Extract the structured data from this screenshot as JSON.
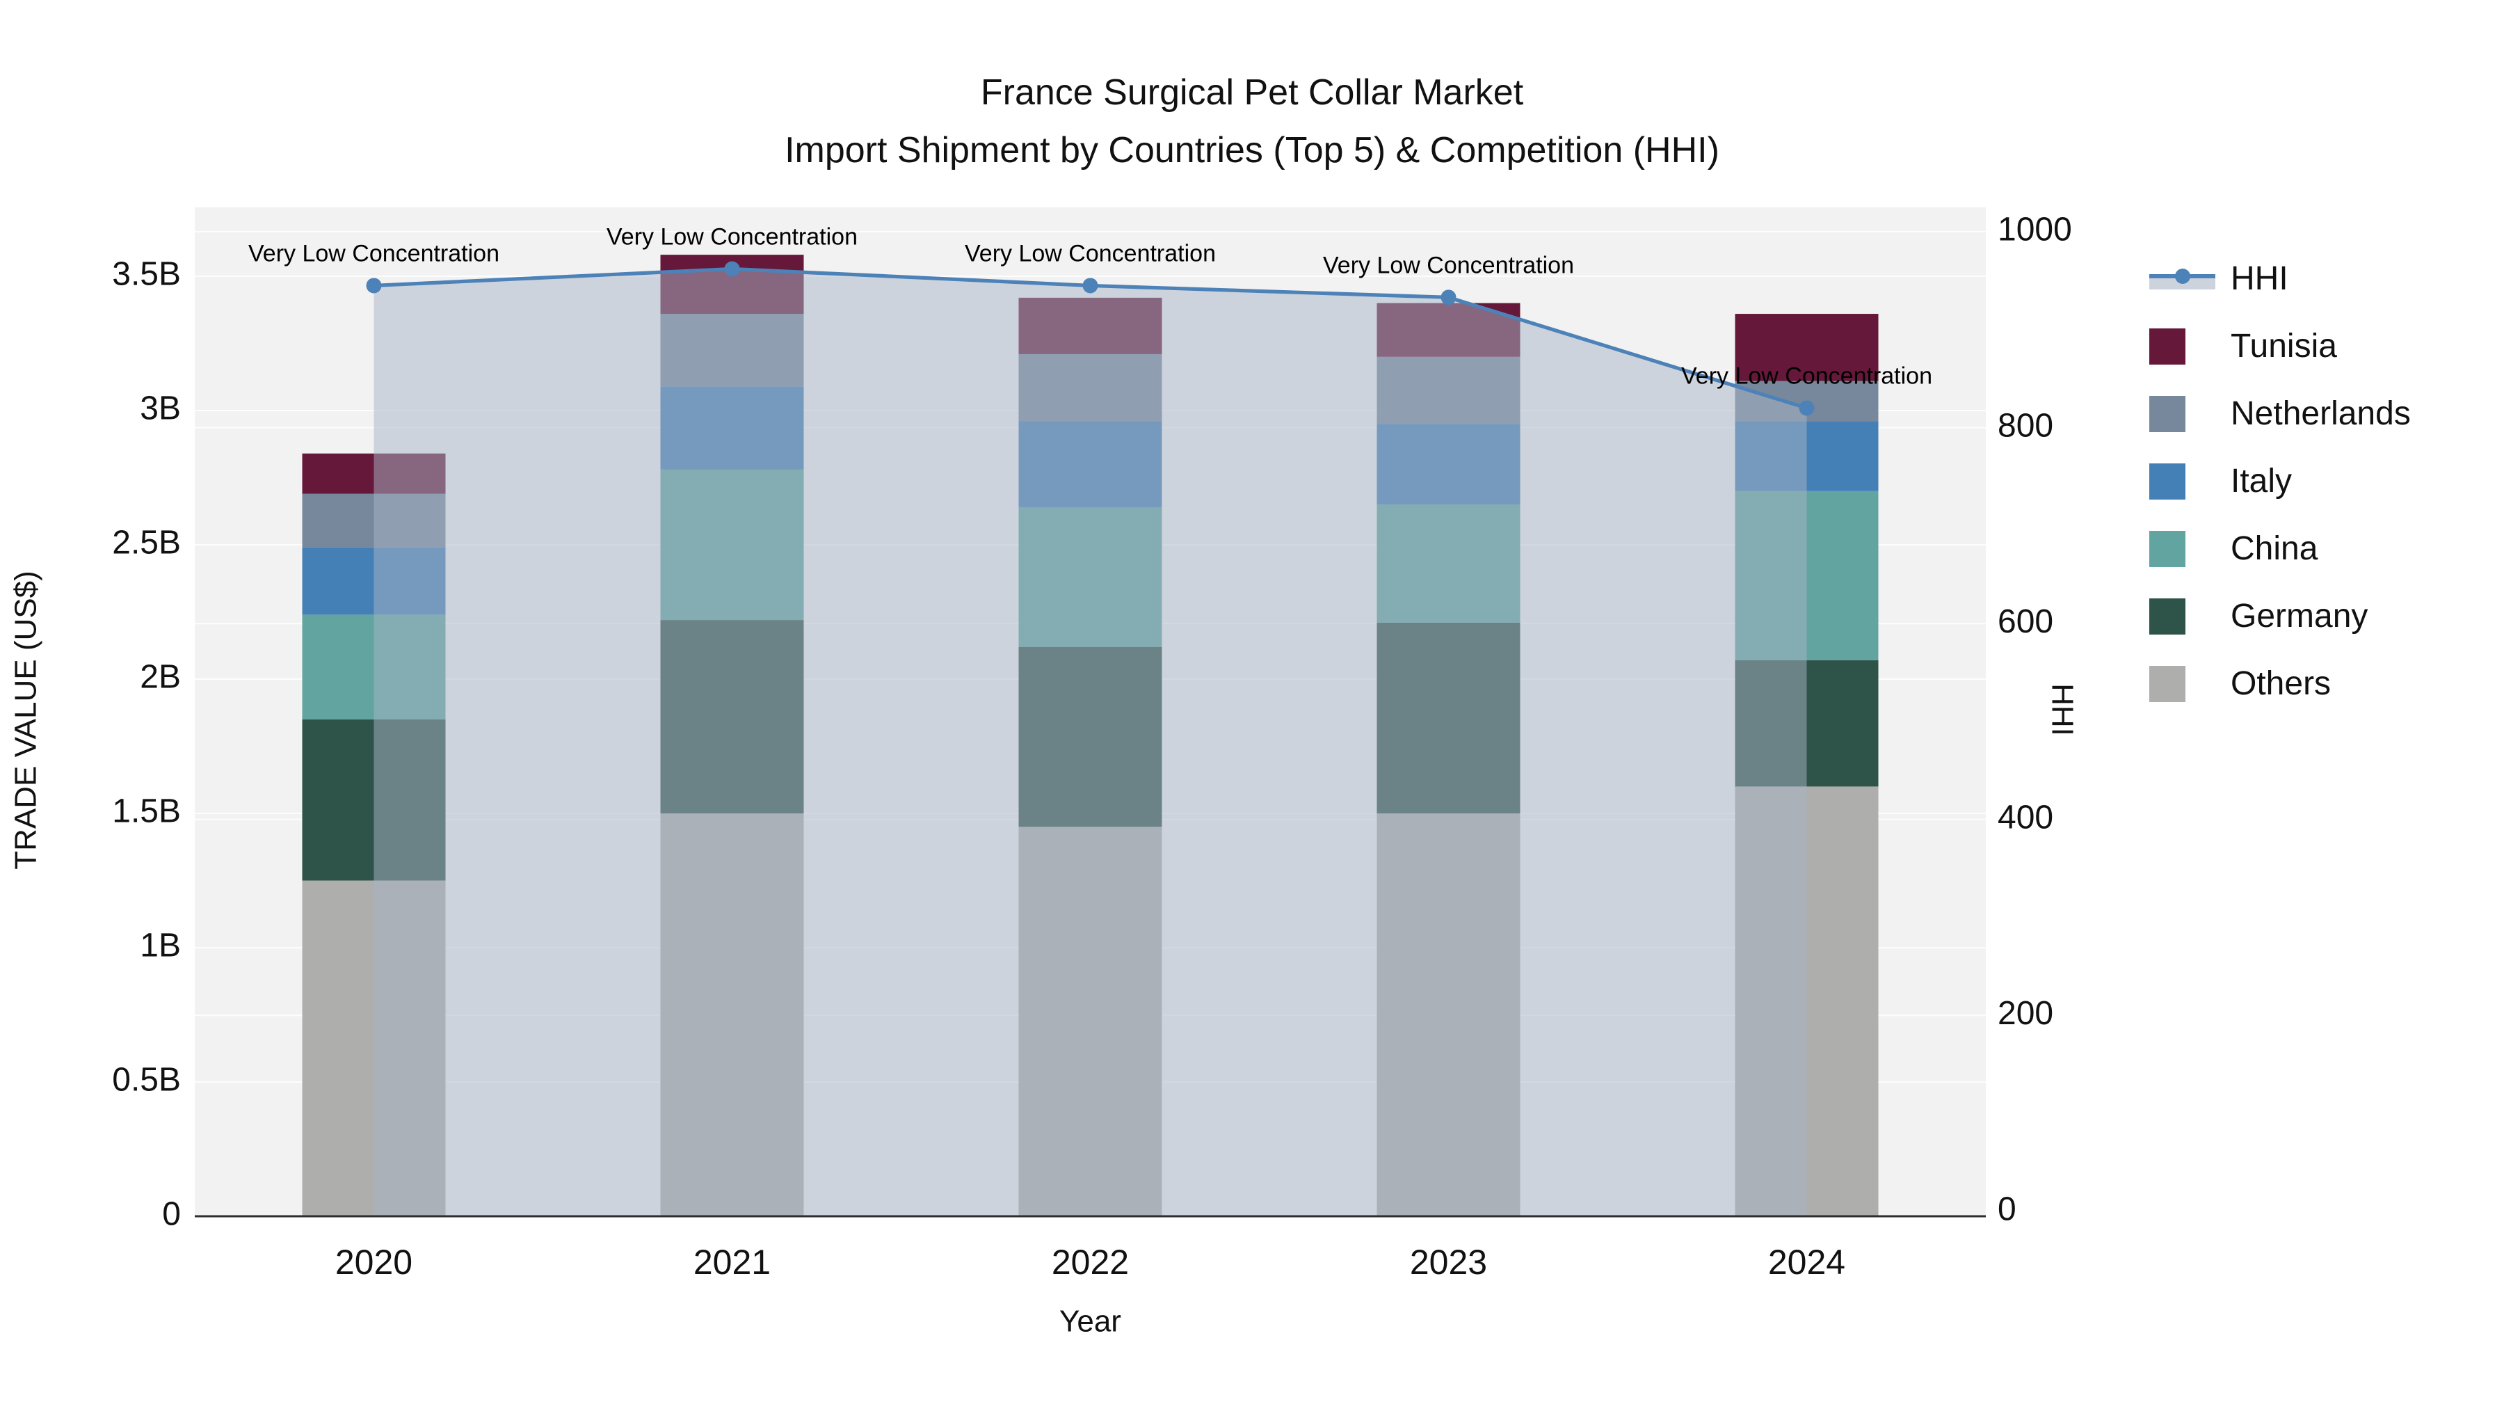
{
  "title": {
    "line1": "France Surgical Pet Collar Market",
    "line2": "Import Shipment by Countries (Top 5) & Competition (HHI)"
  },
  "chart_data": {
    "type": "combo: stacked bar (left axis) + line with area fill (right axis)",
    "title": "France Surgical Pet Collar Market — Import Shipment by Countries (Top 5) & Competition (HHI)",
    "categories": [
      "2020",
      "2021",
      "2022",
      "2023",
      "2024"
    ],
    "xlabel": "Year",
    "ylabel_left": "TRADE VALUE (US$)",
    "ylabel_right": "HHI",
    "bar_unit": "billion US$",
    "ylim_left_billions": [
      0,
      3.75
    ],
    "ylim_right": [
      0,
      1030
    ],
    "ytick_labels_left": [
      "0",
      "0.5B",
      "1B",
      "1.5B",
      "2B",
      "2.5B",
      "3B",
      "3.5B"
    ],
    "ytick_values_left_billions": [
      0,
      0.5,
      1,
      1.5,
      2,
      2.5,
      3,
      3.5
    ],
    "ytick_values_right": [
      0,
      200,
      400,
      600,
      800,
      1000
    ],
    "bar_series_bottom_to_top": [
      {
        "name": "Others",
        "color": "#aeafac",
        "values": [
          1.25,
          1.5,
          1.45,
          1.5,
          1.6
        ]
      },
      {
        "name": "Germany",
        "color": "#2e5349",
        "values": [
          0.6,
          0.72,
          0.67,
          0.71,
          0.47
        ]
      },
      {
        "name": "China",
        "color": "#61a4a0",
        "values": [
          0.39,
          0.56,
          0.52,
          0.44,
          0.63
        ]
      },
      {
        "name": "Italy",
        "color": "#4480b6",
        "values": [
          0.25,
          0.31,
          0.32,
          0.3,
          0.26
        ]
      },
      {
        "name": "Netherlands",
        "color": "#78889c",
        "values": [
          0.2,
          0.27,
          0.25,
          0.25,
          0.15
        ]
      },
      {
        "name": "Tunisia",
        "color": "#66183a",
        "values": [
          0.15,
          0.22,
          0.21,
          0.2,
          0.25
        ]
      }
    ],
    "line_series": {
      "name": "HHI",
      "color": "#4d82b8",
      "marker": "circle",
      "area_fill": "#a8b4c6",
      "area_opacity": 0.5,
      "values": [
        945,
        962,
        945,
        933,
        820
      ]
    },
    "point_annotations": [
      "Very Low Concentration",
      "Very Low Concentration",
      "Very Low Concentration",
      "Very Low Concentration",
      "Very Low Concentration"
    ],
    "legend_position": "right",
    "grid": "horizontal gridlines for both axes",
    "plot_bg": "#f2f2f2",
    "grid_color": "#ffffff",
    "axis_line_color": "#2e2e2e",
    "legend": [
      {
        "label": "HHI",
        "symbol": "line",
        "color": "#4d82b8",
        "band_color": "#ccd3dd"
      },
      {
        "label": "Tunisia",
        "symbol": "square",
        "color": "#66183a"
      },
      {
        "label": "Netherlands",
        "symbol": "square",
        "color": "#78889c"
      },
      {
        "label": "Italy",
        "symbol": "square",
        "color": "#4480b6"
      },
      {
        "label": "China",
        "symbol": "square",
        "color": "#61a4a0"
      },
      {
        "label": "Germany",
        "symbol": "square",
        "color": "#2e5349"
      },
      {
        "label": "Others",
        "symbol": "square",
        "color": "#aeafac"
      }
    ]
  }
}
